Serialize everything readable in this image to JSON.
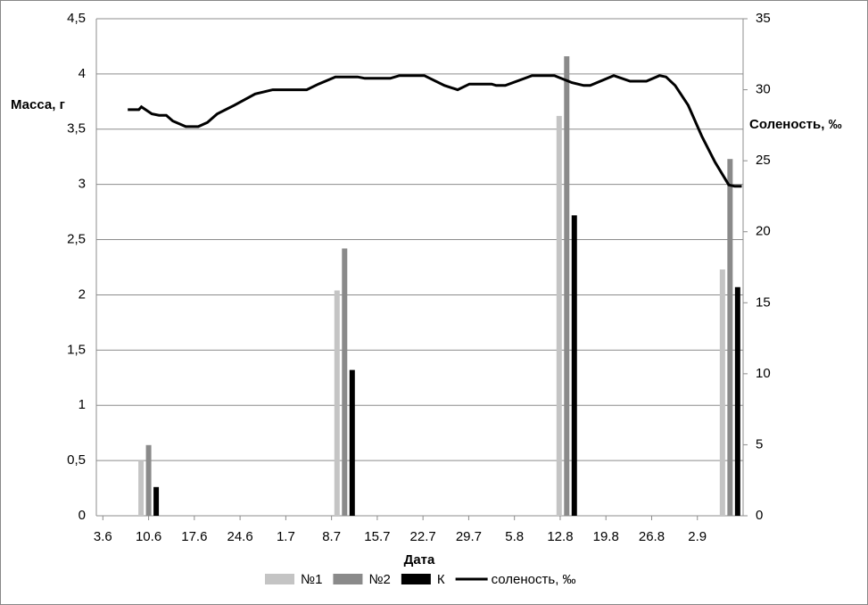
{
  "chart_data": {
    "type": "bar",
    "y_label": "Масса, г",
    "y2_label": "Соленость, ‰",
    "x_label": "Дата",
    "xlim": [
      -1,
      98
    ],
    "xticks": [
      {
        "value": 0,
        "label": "3.6"
      },
      {
        "value": 7,
        "label": "10.6"
      },
      {
        "value": 14,
        "label": "17.6"
      },
      {
        "value": 21,
        "label": "24.6"
      },
      {
        "value": 28,
        "label": "1.7"
      },
      {
        "value": 35,
        "label": "8.7"
      },
      {
        "value": 42,
        "label": "15.7"
      },
      {
        "value": 49,
        "label": "22.7"
      },
      {
        "value": 56,
        "label": "29.7"
      },
      {
        "value": 63,
        "label": "5.8"
      },
      {
        "value": 70,
        "label": "12.8"
      },
      {
        "value": 77,
        "label": "19.8"
      },
      {
        "value": 84,
        "label": "26.8"
      },
      {
        "value": 91,
        "label": "2.9"
      }
    ],
    "ylim": [
      0,
      4.5
    ],
    "yticks": [
      0,
      {
        "value": 0.5,
        "label": "0,5"
      },
      1,
      {
        "value": 1.5,
        "label": "1,5"
      },
      2,
      {
        "value": 2.5,
        "label": "2,5"
      },
      3,
      {
        "value": 3.5,
        "label": "3,5"
      },
      4,
      {
        "value": 4.5,
        "label": "4,5"
      }
    ],
    "y2lim": [
      0,
      35
    ],
    "y2ticks": [
      0,
      5,
      10,
      15,
      20,
      25,
      30,
      35
    ],
    "grid": true,
    "legend": "bottom",
    "x": [
      7,
      37,
      71,
      96
    ],
    "series": [
      {
        "name": "№1",
        "type": "bar",
        "color": "#c4c4c4",
        "values": [
          0.5,
          2.04,
          3.62,
          2.23
        ]
      },
      {
        "name": "№2",
        "type": "bar",
        "color": "#8a8a8a",
        "values": [
          0.64,
          2.42,
          4.16,
          3.23
        ]
      },
      {
        "name": "К",
        "type": "bar",
        "color": "#000000",
        "values": [
          0.26,
          1.32,
          2.72,
          2.07
        ]
      },
      {
        "name": "соленость, ‰",
        "type": "line",
        "axis": "y2",
        "color": "#000000",
        "x": [
          3.8,
          5.5,
          5.9,
          7.5,
          8.6,
          9.7,
          10.7,
          12.7,
          14.6,
          16,
          17.5,
          20.1,
          23.3,
          26,
          31.2,
          33,
          35.6,
          39,
          40.1,
          44,
          45.4,
          49.2,
          52.3,
          54.3,
          56.1,
          59.5,
          60.2,
          61.6,
          65.7,
          69.1,
          71.8,
          73.6,
          74.6,
          78.2,
          80.7,
          83.2,
          85.2,
          86.2,
          87.6,
          89.6,
          91.7,
          93.7,
          95.8,
          96.7,
          97.8
        ],
        "values": [
          28.6,
          28.6,
          28.8,
          28.3,
          28.2,
          28.2,
          27.8,
          27.4,
          27.4,
          27.7,
          28.3,
          28.9,
          29.7,
          30,
          30,
          30.4,
          30.9,
          30.9,
          30.8,
          30.8,
          31,
          31,
          30.3,
          30,
          30.4,
          30.4,
          30.3,
          30.3,
          31,
          31,
          30.5,
          30.3,
          30.3,
          31,
          30.6,
          30.6,
          31,
          30.9,
          30.3,
          28.9,
          26.7,
          24.9,
          23.3,
          23.2,
          23.2
        ]
      }
    ]
  }
}
